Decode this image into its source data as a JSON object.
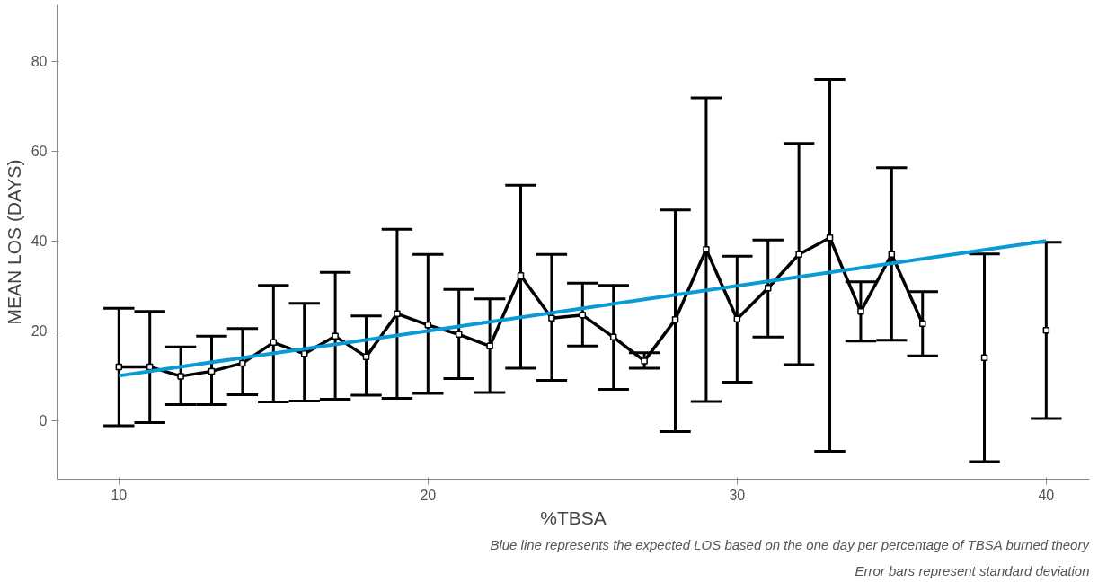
{
  "chart_data": {
    "type": "line",
    "xlabel": "%TBSA",
    "ylabel": "MEAN LOS (DAYS)",
    "x": [
      10,
      11,
      12,
      13,
      14,
      15,
      16,
      17,
      18,
      19,
      20,
      21,
      22,
      23,
      24,
      25,
      26,
      27,
      28,
      29,
      30,
      31,
      32,
      33,
      34,
      35,
      36,
      37,
      38,
      39,
      40
    ],
    "series": [
      {
        "color": "#000000",
        "marker": "square",
        "values": [
          12.0,
          12.0,
          9.9,
          11.0,
          12.8,
          17.4,
          14.9,
          18.8,
          14.2,
          23.8,
          21.3,
          19.2,
          16.6,
          32.3,
          22.8,
          23.5,
          18.6,
          13.3,
          22.5,
          38.1,
          22.6,
          29.5,
          37.0,
          40.7,
          24.3,
          37.0,
          21.6,
          null,
          14.0,
          null,
          20.1
        ],
        "errors": [
          [
            -1.1,
            25.0
          ],
          [
            -0.4,
            24.3
          ],
          [
            3.6,
            16.4
          ],
          [
            3.6,
            18.8
          ],
          [
            5.8,
            20.5
          ],
          [
            4.2,
            30.1
          ],
          [
            4.4,
            26.1
          ],
          [
            4.8,
            33.0
          ],
          [
            5.7,
            23.3
          ],
          [
            5.0,
            42.6
          ],
          [
            6.1,
            37.0
          ],
          [
            9.4,
            29.2
          ],
          [
            6.3,
            27.1
          ],
          [
            11.7,
            52.4
          ],
          [
            9.0,
            37.0
          ],
          [
            16.6,
            30.6
          ],
          [
            7.0,
            30.1
          ],
          [
            11.7,
            15.1
          ],
          [
            -2.4,
            46.9
          ],
          [
            4.3,
            71.8
          ],
          [
            8.6,
            36.6
          ],
          [
            18.6,
            40.2
          ],
          [
            12.5,
            61.7
          ],
          [
            -6.8,
            75.9
          ],
          [
            17.7,
            30.9
          ],
          [
            17.9,
            56.3
          ],
          [
            14.4,
            28.7
          ],
          null,
          [
            -9.1,
            37.1
          ],
          null,
          [
            0.5,
            39.7
          ]
        ]
      },
      {
        "color": "#0a9bd6",
        "x": [
          10,
          40
        ],
        "values": [
          10,
          40
        ]
      }
    ],
    "xlim": [
      8.0,
      41.4
    ],
    "ylim": [
      -13,
      92.5
    ],
    "xticks": [
      10,
      20,
      30,
      40
    ],
    "yticks": [
      0,
      20,
      40,
      60,
      80
    ],
    "grid": false,
    "annotations": [
      "Blue line represents the expected LOS based on the one day per percentage of TBSA burned theory",
      "Error bars represent standard deviation"
    ]
  }
}
